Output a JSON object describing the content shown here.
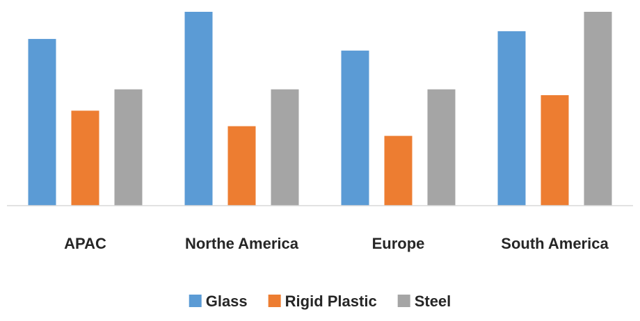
{
  "chart_data": {
    "type": "bar",
    "title": "",
    "xlabel": "",
    "ylabel": "",
    "categories": [
      "APAC",
      "Northe America",
      "Europe",
      "South America"
    ],
    "series": [
      {
        "name": "Glass",
        "values": [
          8.6,
          10,
          8.0,
          9.0
        ],
        "color": "#5B9BD5"
      },
      {
        "name": "Rigid Plastic",
        "values": [
          4.9,
          4.1,
          3.6,
          5.7
        ],
        "color": "#ED7D31"
      },
      {
        "name": "Steel",
        "values": [
          6.0,
          6.0,
          6.0,
          10
        ],
        "color": "#A5A5A5"
      }
    ],
    "ylim": [
      0,
      10
    ],
    "grid": false,
    "y_axis_visible": false,
    "legend_position": "bottom"
  }
}
